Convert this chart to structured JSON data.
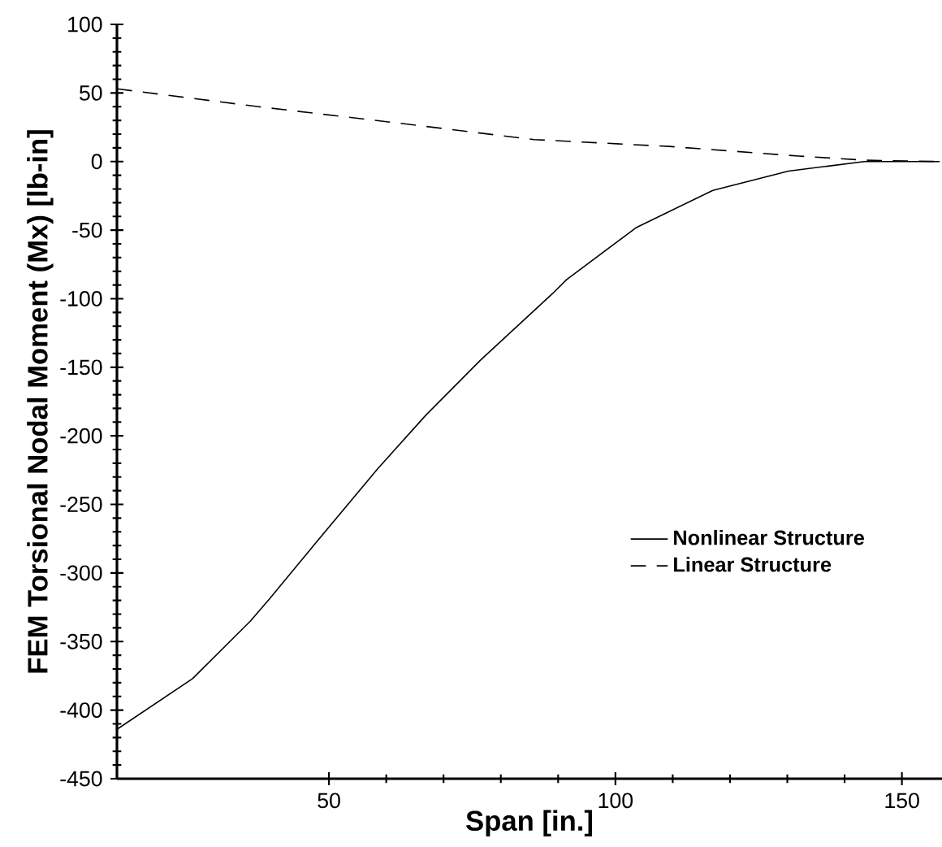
{
  "chart_data": {
    "type": "line",
    "xlabel": "Span [in.]",
    "ylabel": "FEM Torsional Nodal Moment (Mx)  [lb-in]",
    "xlim": [
      13,
      157
    ],
    "xticks": [
      50,
      100,
      150
    ],
    "ylim": [
      -450,
      100
    ],
    "yticks": [
      -450,
      -400,
      -350,
      -300,
      -250,
      -200,
      -150,
      -100,
      -50,
      0,
      50,
      100
    ],
    "grid": false,
    "legend": "right",
    "marker": "none",
    "series": [
      {
        "name": "Nonlinear Structure",
        "color": "#000000",
        "line_style": "solid",
        "x": [
          13,
          26.2,
          36.3,
          39.6,
          48.1,
          58.5,
          66.9,
          76.4,
          89.1,
          91.5,
          103.7,
          117,
          130.2,
          143.4,
          156.6
        ],
        "values": [
          -414,
          -377,
          -335,
          -319,
          -276,
          -224,
          -185,
          -145,
          -96,
          -86,
          -48,
          -21,
          -7,
          0,
          0
        ]
      },
      {
        "name": "Linear Structure",
        "color": "#000000",
        "line_style": "dashed",
        "x": [
          13,
          37.7,
          62.2,
          85.8,
          109.4,
          132,
          143.4,
          156.6
        ],
        "values": [
          53,
          40,
          28,
          16,
          11,
          4,
          1,
          0
        ]
      }
    ]
  }
}
